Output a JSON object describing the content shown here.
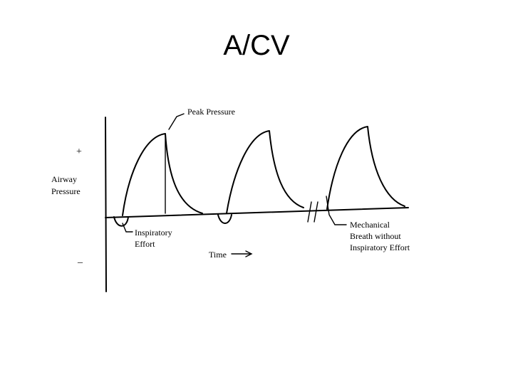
{
  "slide": {
    "title": "A/CV"
  },
  "diagram": {
    "y_axis_label_line1": "Airway",
    "y_axis_label_line2": "Pressure",
    "plus_sign": "+",
    "minus_sign": "_",
    "x_axis_label": "Time",
    "peak_pressure_label": "Peak Pressure",
    "inspiratory_effort_line1": "Inspiratory",
    "inspiratory_effort_line2": "Effort",
    "mechanical_line1": "Mechanical",
    "mechanical_line2": "Breath without",
    "mechanical_line3": "Inspiratory Effort"
  }
}
